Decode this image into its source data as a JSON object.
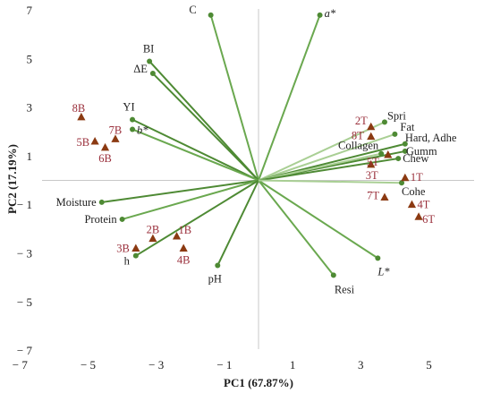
{
  "chart_data": {
    "type": "scatter",
    "title": "",
    "xlabel": "PC1 (67.87%)",
    "ylabel": "PC2 (17.19%)",
    "xlim": [
      -7,
      7
    ],
    "ylim": [
      -7,
      7
    ],
    "x_ticks": [
      "− 7",
      "− 5",
      "− 3",
      "− 1",
      "1",
      "3",
      "5",
      "7"
    ],
    "y_ticks": [
      "7",
      "5",
      "3",
      "1",
      "− 1",
      "− 3",
      "− 5",
      "− 7"
    ],
    "colors": {
      "loading_dark": "#4e8a34",
      "loading_mid": "#6aa84f",
      "loading_light": "#a9cf94",
      "sample_marker": "#8b3a12",
      "sample_text": "#9a2f3b"
    },
    "loadings": [
      {
        "label": "C",
        "x": -1.4,
        "y": 6.8,
        "shade": "mid",
        "italic": false
      },
      {
        "label": "a*",
        "x": 1.8,
        "y": 6.8,
        "shade": "mid",
        "italic": true
      },
      {
        "label": "BI",
        "x": -3.2,
        "y": 4.9,
        "shade": "dark",
        "italic": false
      },
      {
        "label": "ΔE",
        "x": -3.1,
        "y": 4.4,
        "shade": "dark",
        "italic": false
      },
      {
        "label": "YI",
        "x": -3.7,
        "y": 2.5,
        "shade": "dark",
        "italic": false
      },
      {
        "label": "b*",
        "x": -3.7,
        "y": 2.1,
        "shade": "mid",
        "italic": true
      },
      {
        "label": "Moisture",
        "x": -4.6,
        "y": -0.9,
        "shade": "dark",
        "italic": false
      },
      {
        "label": "Protein",
        "x": -4.0,
        "y": -1.6,
        "shade": "mid",
        "italic": false
      },
      {
        "label": "h",
        "x": -3.6,
        "y": -3.1,
        "shade": "dark",
        "italic": false
      },
      {
        "label": "pH",
        "x": -1.2,
        "y": -3.5,
        "shade": "dark",
        "italic": false
      },
      {
        "label": "Resi",
        "x": 2.2,
        "y": -3.9,
        "shade": "mid",
        "italic": false
      },
      {
        "label": "L*",
        "x": 3.5,
        "y": -3.2,
        "shade": "mid",
        "italic": true
      },
      {
        "label": "Spri",
        "x": 3.7,
        "y": 2.4,
        "shade": "light",
        "italic": false
      },
      {
        "label": "Fat",
        "x": 4.0,
        "y": 1.9,
        "shade": "light",
        "italic": false
      },
      {
        "label": "Hard, Adhe",
        "x": 4.3,
        "y": 1.5,
        "shade": "dark",
        "italic": false
      },
      {
        "label": "Gumm",
        "x": 4.3,
        "y": 1.2,
        "shade": "dark",
        "italic": false
      },
      {
        "label": "Collagen",
        "x": 3.6,
        "y": 1.1,
        "shade": "light",
        "italic": false
      },
      {
        "label": "Chew",
        "x": 4.1,
        "y": 0.9,
        "shade": "dark",
        "italic": false
      },
      {
        "label": "Cohe",
        "x": 4.2,
        "y": -0.1,
        "shade": "light",
        "italic": false
      }
    ],
    "samples": [
      {
        "label": "8B",
        "x": -5.2,
        "y": 2.6
      },
      {
        "label": "7B",
        "x": -4.2,
        "y": 1.7
      },
      {
        "label": "5B",
        "x": -4.8,
        "y": 1.6
      },
      {
        "label": "6B",
        "x": -4.5,
        "y": 1.35
      },
      {
        "label": "2T",
        "x": 3.3,
        "y": 2.2
      },
      {
        "label": "8T",
        "x": 3.3,
        "y": 1.8
      },
      {
        "label": "5T",
        "x": 3.8,
        "y": 1.05
      },
      {
        "label": "3T",
        "x": 3.3,
        "y": 0.65
      },
      {
        "label": "1T",
        "x": 4.3,
        "y": 0.1
      },
      {
        "label": "7T",
        "x": 3.7,
        "y": -0.7
      },
      {
        "label": "4T",
        "x": 4.5,
        "y": -1.0
      },
      {
        "label": "6T",
        "x": 4.7,
        "y": -1.5
      },
      {
        "label": "2B",
        "x": -3.1,
        "y": -2.4
      },
      {
        "label": "1B",
        "x": -2.4,
        "y": -2.3
      },
      {
        "label": "3B",
        "x": -3.6,
        "y": -2.8
      },
      {
        "label": "4B",
        "x": -2.2,
        "y": -2.8
      }
    ]
  }
}
